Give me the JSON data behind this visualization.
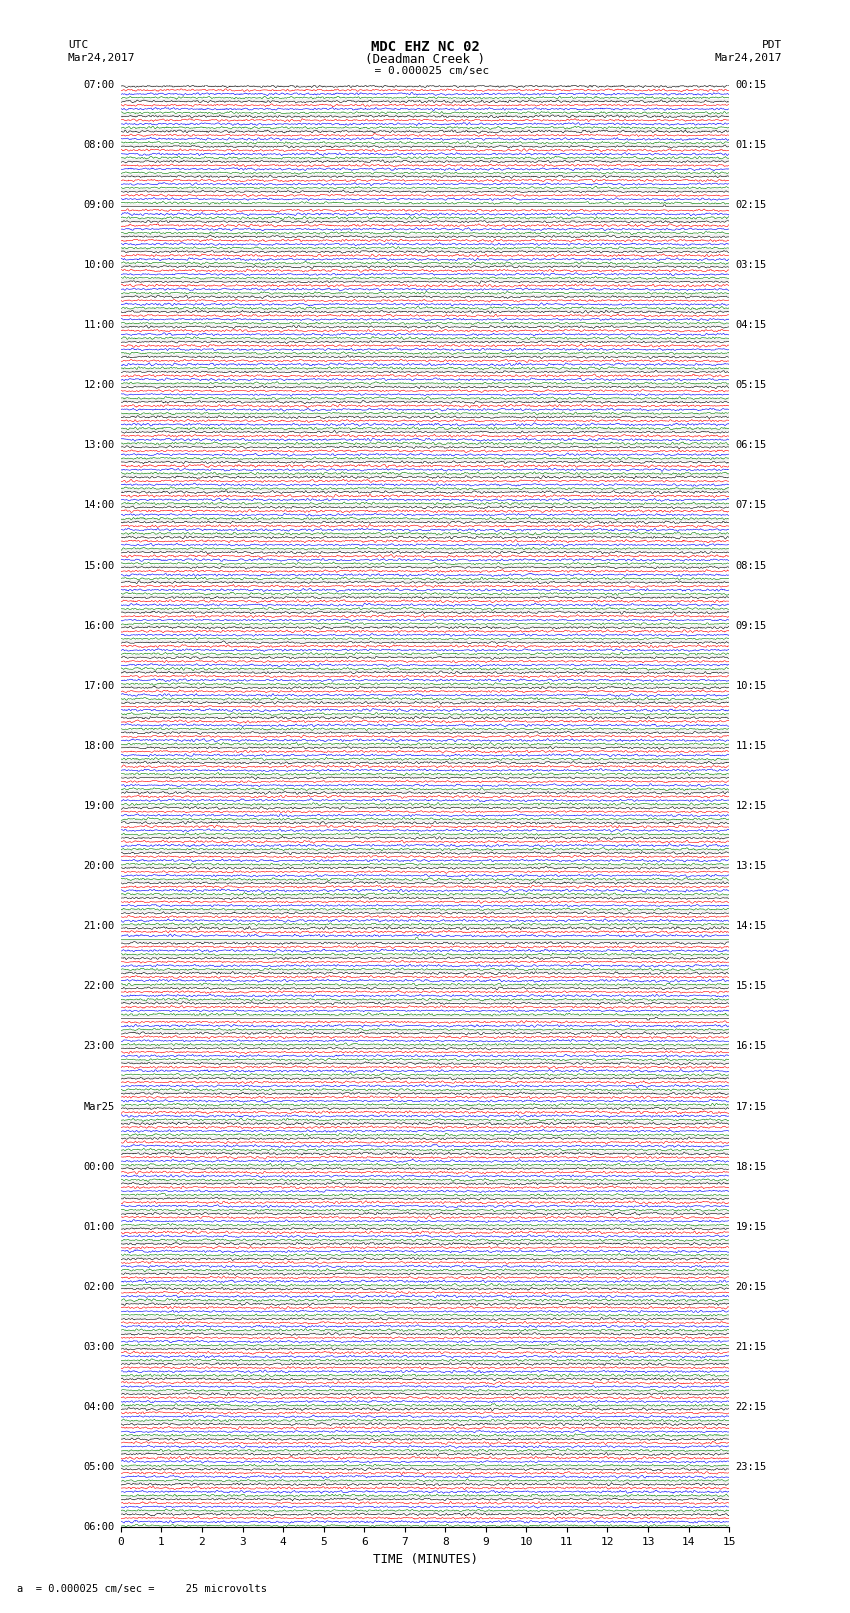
{
  "title_line1": "MDC EHZ NC 02",
  "title_line2": "(Deadman Creek )",
  "scale_label": "  = 0.000025 cm/sec",
  "bottom_label": "a  = 0.000025 cm/sec =     25 microvolts",
  "xlabel": "TIME (MINUTES)",
  "utc_label": "UTC",
  "utc_date": "Mar24,2017",
  "pdt_label": "PDT",
  "pdt_date": "Mar24,2017",
  "left_times": [
    "07:00",
    "08:00",
    "09:00",
    "10:00",
    "11:00",
    "12:00",
    "13:00",
    "14:00",
    "15:00",
    "16:00",
    "17:00",
    "18:00",
    "19:00",
    "20:00",
    "21:00",
    "22:00",
    "23:00",
    "Mar25",
    "00:00",
    "01:00",
    "02:00",
    "03:00",
    "04:00",
    "05:00",
    "06:00"
  ],
  "right_times": [
    "00:15",
    "01:15",
    "02:15",
    "03:15",
    "04:15",
    "05:15",
    "06:15",
    "07:15",
    "08:15",
    "09:15",
    "10:15",
    "11:15",
    "12:15",
    "13:15",
    "14:15",
    "15:15",
    "16:15",
    "17:15",
    "18:15",
    "19:15",
    "20:15",
    "21:15",
    "22:15",
    "23:15"
  ],
  "trace_colors": [
    "black",
    "red",
    "blue",
    "green"
  ],
  "bg_color": "#ffffff",
  "trace_linewidth": 0.4,
  "grid_color": "#888888",
  "num_rows": 96,
  "minutes_per_row": 15,
  "x_ticks": [
    0,
    1,
    2,
    3,
    4,
    5,
    6,
    7,
    8,
    9,
    10,
    11,
    12,
    13,
    14,
    15
  ],
  "noise_seed": 42
}
